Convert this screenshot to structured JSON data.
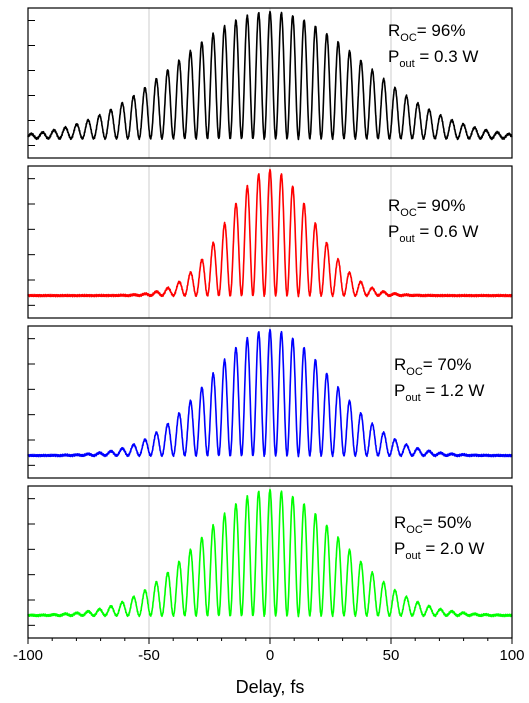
{
  "chart_data": {
    "type": "line",
    "xlabel": "Delay, fs",
    "xlim": [
      -100,
      100
    ],
    "x_ticks": [
      -100,
      -50,
      0,
      50,
      100
    ],
    "x_tick_labels": [
      "-100",
      "-50",
      "0",
      "50",
      "100"
    ],
    "grid": "vertical gridlines at x = -50, 0, 50",
    "legend": "none",
    "panels": [
      {
        "color": "#000000",
        "annotation": {
          "r_label": "R",
          "r_sub": "OC",
          "r_value": "= 96%",
          "p_label": "P",
          "p_sub": "out",
          "p_value": " = 0.3 W"
        },
        "envelope_fwhm_fs": 90,
        "background": 0.07,
        "peak": 1.0,
        "fringe_period_fs": 4.7
      },
      {
        "color": "#ff0000",
        "annotation": {
          "r_label": "R",
          "r_sub": "OC",
          "r_value": "= 90%",
          "p_label": "P",
          "p_sub": "out",
          "p_value": " = 0.6 W"
        },
        "envelope_fwhm_fs": 42,
        "background": 0.09,
        "peak": 1.0,
        "fringe_period_fs": 4.7
      },
      {
        "color": "#0000ff",
        "annotation": {
          "r_label": "R",
          "r_sub": "OC",
          "r_value": "= 70%",
          "p_label": "P",
          "p_sub": "out",
          "p_value": " = 1.2 W"
        },
        "envelope_fwhm_fs": 60,
        "background": 0.09,
        "peak": 1.0,
        "fringe_period_fs": 4.7
      },
      {
        "color": "#00ff00",
        "annotation": {
          "r_label": "R",
          "r_sub": "OC",
          "r_value": "= 50%",
          "p_label": "P",
          "p_sub": "out",
          "p_value": " = 2.0 W"
        },
        "envelope_fwhm_fs": 68,
        "background": 0.09,
        "peak": 1.0,
        "fringe_period_fs": 4.7
      }
    ]
  }
}
